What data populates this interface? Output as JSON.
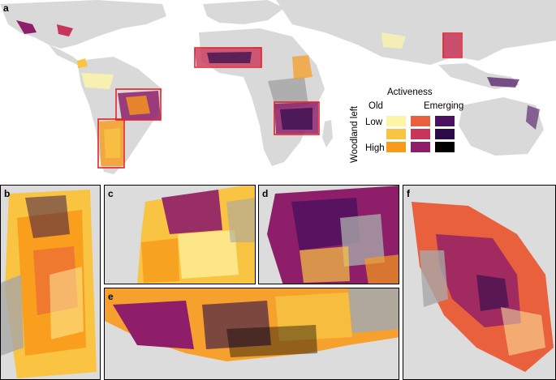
{
  "panels": [
    {
      "id": "a",
      "label": "a"
    },
    {
      "id": "b",
      "label": "b"
    },
    {
      "id": "c",
      "label": "c"
    },
    {
      "id": "d",
      "label": "d"
    },
    {
      "id": "e",
      "label": "e"
    },
    {
      "id": "f",
      "label": "f"
    }
  ],
  "legend": {
    "title": "Activeness",
    "col_old": "Old",
    "col_emerging": "Emerging",
    "row_low": "Low",
    "row_high": "High",
    "y_axis": "Woodland left",
    "colors": [
      [
        "#fdf5a6",
        "#e8603c",
        "#4a0f5e"
      ],
      [
        "#f8c442",
        "#c8355a",
        "#2c0b4a"
      ],
      [
        "#f89a1a",
        "#8e1e6a",
        "#000000"
      ]
    ]
  },
  "colors": {
    "land": "#d9d9d9",
    "water": "#ffffff",
    "highlight_box": "#e0232a",
    "forest_gray": "#a8a8a8"
  }
}
